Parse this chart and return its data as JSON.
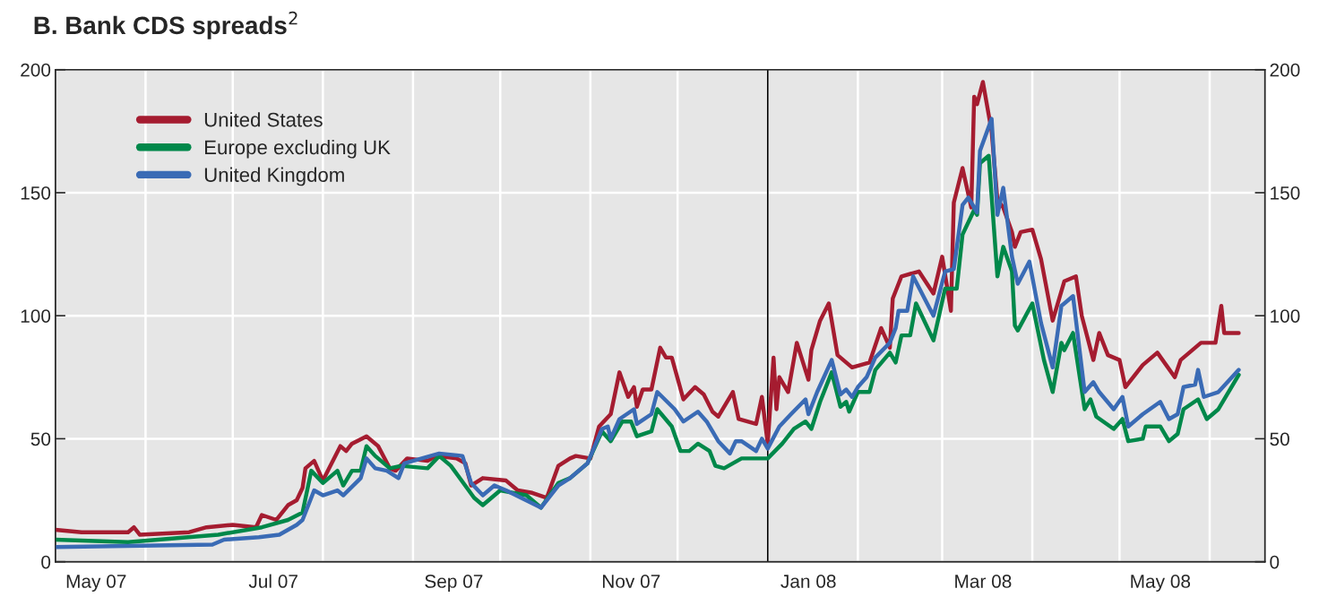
{
  "chart_data": {
    "type": "line",
    "title": "B. Bank CDS spreads$^{2}$",
    "xlim": [
      "2007-05-01",
      "2008-06-20"
    ],
    "xticks": [
      {
        "value": "2007-06-01",
        "label": null
      },
      {
        "value": "2007-07-01",
        "label": null
      },
      {
        "value": "2007-08-01",
        "label": null
      },
      {
        "value": "2007-09-01",
        "label": null
      },
      {
        "value": "2007-10-01",
        "label": null
      },
      {
        "value": "2007-11-01",
        "label": null
      },
      {
        "value": "2007-12-01",
        "label": null
      },
      {
        "value": "2008-01-01",
        "label": null
      },
      {
        "value": "2008-02-01",
        "label": null
      },
      {
        "value": "2008-03-01",
        "label": null
      },
      {
        "value": "2008-04-01",
        "label": null
      },
      {
        "value": "2008-05-01",
        "label": null
      },
      {
        "value": "2008-06-01",
        "label": null
      },
      {
        "value": "2007-05-15",
        "label": "May 07"
      },
      {
        "value": "2007-07-15",
        "label": "Jul 07"
      },
      {
        "value": "2007-09-15",
        "label": "Sep 07"
      },
      {
        "value": "2007-11-15",
        "label": "Nov 07"
      },
      {
        "value": "2008-01-15",
        "label": "Jan 08"
      },
      {
        "value": "2008-03-15",
        "label": "Mar 08"
      },
      {
        "value": "2008-05-15",
        "label": "May 08"
      }
    ],
    "ylim": [
      0,
      200
    ],
    "yticks": [
      0,
      50,
      100,
      150,
      200
    ],
    "y2lim": [
      0,
      200
    ],
    "y2ticks": [
      0,
      50,
      100,
      150,
      200
    ],
    "grid": true,
    "legend": "top left",
    "ref_lines": [
      {
        "axis": "x",
        "value": "2008-01-01",
        "color": "#000000"
      }
    ],
    "series": [
      {
        "name": "United States",
        "color": "#a51c30",
        "x": [
          "2007-05-01",
          "2007-05-10",
          "2007-05-26",
          "2007-05-28",
          "2007-05-30",
          "2007-06-16",
          "2007-06-22",
          "2007-07-01",
          "2007-07-09",
          "2007-07-11",
          "2007-07-16",
          "2007-07-20",
          "2007-07-23",
          "2007-07-25",
          "2007-07-26",
          "2007-07-29",
          "2007-08-01",
          "2007-08-07",
          "2007-08-09",
          "2007-08-11",
          "2007-08-16",
          "2007-08-20",
          "2007-08-24",
          "2007-08-26",
          "2007-08-30",
          "2007-09-06",
          "2007-09-09",
          "2007-09-16",
          "2007-09-19",
          "2007-09-21",
          "2007-09-25",
          "2007-10-03",
          "2007-10-07",
          "2007-10-12",
          "2007-10-17",
          "2007-10-21",
          "2007-10-25",
          "2007-10-27",
          "2007-11-01",
          "2007-11-04",
          "2007-11-08",
          "2007-11-11",
          "2007-11-14",
          "2007-11-16",
          "2007-11-17",
          "2007-11-19",
          "2007-11-22",
          "2007-11-25",
          "2007-11-27",
          "2007-11-29",
          "2007-12-03",
          "2007-12-07",
          "2007-12-10",
          "2007-12-13",
          "2007-12-15",
          "2007-12-20",
          "2007-12-22",
          "2007-12-28",
          "2007-12-30",
          "2008-01-01",
          "2008-01-03",
          "2008-01-04",
          "2008-01-05",
          "2008-01-08",
          "2008-01-11",
          "2008-01-15",
          "2008-01-16",
          "2008-01-19",
          "2008-01-22",
          "2008-01-25",
          "2008-01-30",
          "2008-02-05",
          "2008-02-09",
          "2008-02-12",
          "2008-02-13",
          "2008-02-16",
          "2008-02-22",
          "2008-02-27",
          "2008-03-01",
          "2008-03-04",
          "2008-03-05",
          "2008-03-08",
          "2008-03-11",
          "2008-03-12",
          "2008-03-13",
          "2008-03-15",
          "2008-03-18",
          "2008-03-20",
          "2008-03-22",
          "2008-03-25",
          "2008-03-26",
          "2008-03-28",
          "2008-04-01",
          "2008-04-04",
          "2008-04-08",
          "2008-04-12",
          "2008-04-16",
          "2008-04-18",
          "2008-04-22",
          "2008-04-24",
          "2008-04-27",
          "2008-05-01",
          "2008-05-03",
          "2008-05-09",
          "2008-05-14",
          "2008-05-20",
          "2008-05-22",
          "2008-05-29",
          "2008-06-03",
          "2008-06-05",
          "2008-06-06",
          "2008-06-11"
        ],
        "values": [
          13,
          12,
          12,
          14,
          11,
          12,
          14,
          15,
          14,
          19,
          17,
          23,
          25,
          30,
          38,
          41,
          33,
          47,
          45,
          48,
          51,
          47,
          38,
          37,
          42,
          41,
          43,
          42,
          40,
          31,
          34,
          33,
          29,
          28,
          26,
          39,
          42,
          43,
          42,
          55,
          60,
          77,
          67,
          71,
          63,
          70,
          70,
          87,
          83,
          83,
          66,
          71,
          68,
          61,
          59,
          69,
          58,
          56,
          67,
          48,
          83,
          62,
          75,
          69,
          89,
          74,
          86,
          98,
          105,
          84,
          79,
          81,
          95,
          87,
          107,
          116,
          118,
          109,
          124,
          102,
          146,
          160,
          144,
          189,
          186,
          195,
          175,
          147,
          144,
          134,
          128,
          134,
          135,
          123,
          98,
          114,
          116,
          100,
          82,
          93,
          84,
          82,
          71,
          80,
          85,
          75,
          82,
          89,
          89,
          104,
          93,
          93
        ]
      },
      {
        "name": "Europe excluding UK",
        "color": "#00884a",
        "x": [
          "2007-05-01",
          "2007-05-26",
          "2007-06-26",
          "2007-07-11",
          "2007-07-20",
          "2007-07-25",
          "2007-07-28",
          "2007-08-01",
          "2007-08-06",
          "2007-08-08",
          "2007-08-11",
          "2007-08-14",
          "2007-08-16",
          "2007-08-19",
          "2007-08-24",
          "2007-08-28",
          "2007-09-06",
          "2007-09-10",
          "2007-09-14",
          "2007-09-22",
          "2007-09-25",
          "2007-10-01",
          "2007-10-10",
          "2007-10-15",
          "2007-10-21",
          "2007-10-25",
          "2007-10-31",
          "2007-11-05",
          "2007-11-08",
          "2007-11-12",
          "2007-11-15",
          "2007-11-17",
          "2007-11-22",
          "2007-11-24",
          "2007-11-29",
          "2007-12-02",
          "2007-12-05",
          "2007-12-08",
          "2007-12-12",
          "2007-12-14",
          "2007-12-17",
          "2007-12-23",
          "2008-01-01",
          "2008-01-06",
          "2008-01-10",
          "2008-01-14",
          "2008-01-16",
          "2008-01-19",
          "2008-01-23",
          "2008-01-26",
          "2008-01-28",
          "2008-01-29",
          "2008-02-01",
          "2008-02-05",
          "2008-02-07",
          "2008-02-12",
          "2008-02-14",
          "2008-02-16",
          "2008-02-19",
          "2008-02-21",
          "2008-02-27",
          "2008-03-02",
          "2008-03-06",
          "2008-03-08",
          "2008-03-12",
          "2008-03-13",
          "2008-03-14",
          "2008-03-17",
          "2008-03-20",
          "2008-03-22",
          "2008-03-25",
          "2008-03-26",
          "2008-03-27",
          "2008-04-01",
          "2008-04-05",
          "2008-04-08",
          "2008-04-11",
          "2008-04-12",
          "2008-04-15",
          "2008-04-19",
          "2008-04-21",
          "2008-04-23",
          "2008-04-29",
          "2008-05-02",
          "2008-05-04",
          "2008-05-09",
          "2008-05-10",
          "2008-05-15",
          "2008-05-18",
          "2008-05-21",
          "2008-05-23",
          "2008-05-28",
          "2008-05-31",
          "2008-06-04",
          "2008-06-11"
        ],
        "values": [
          9,
          8,
          11,
          14,
          17,
          20,
          37,
          32,
          37,
          31,
          37,
          37,
          47,
          43,
          38,
          39,
          38,
          43,
          39,
          26,
          23,
          29,
          27,
          22,
          32,
          34,
          40,
          53,
          49,
          57,
          57,
          51,
          53,
          62,
          55,
          45,
          45,
          48,
          45,
          39,
          38,
          42,
          42,
          48,
          54,
          57,
          54,
          65,
          77,
          63,
          65,
          61,
          69,
          69,
          78,
          85,
          81,
          92,
          92,
          105,
          90,
          111,
          111,
          133,
          143,
          141,
          162,
          165,
          116,
          128,
          118,
          96,
          94,
          105,
          82,
          69,
          89,
          86,
          93,
          62,
          66,
          59,
          54,
          58,
          49,
          50,
          55,
          55,
          49,
          52,
          62,
          66,
          58,
          62,
          76
        ]
      },
      {
        "name": "United Kingdom",
        "color": "#3a6bb5",
        "x": [
          "2007-05-01",
          "2007-06-24",
          "2007-06-28",
          "2007-07-10",
          "2007-07-17",
          "2007-07-23",
          "2007-07-25",
          "2007-07-29",
          "2007-08-01",
          "2007-08-06",
          "2007-08-08",
          "2007-08-14",
          "2007-08-16",
          "2007-08-19",
          "2007-08-23",
          "2007-08-27",
          "2007-08-29",
          "2007-09-10",
          "2007-09-18",
          "2007-09-21",
          "2007-09-25",
          "2007-09-29",
          "2007-10-03",
          "2007-10-15",
          "2007-10-21",
          "2007-10-25",
          "2007-10-31",
          "2007-11-05",
          "2007-11-07",
          "2007-11-08",
          "2007-11-11",
          "2007-11-16",
          "2007-11-17",
          "2007-11-22",
          "2007-11-24",
          "2007-11-30",
          "2007-12-03",
          "2007-12-08",
          "2007-12-11",
          "2007-12-15",
          "2007-12-19",
          "2007-12-21",
          "2007-12-23",
          "2007-12-28",
          "2007-12-30",
          "2008-01-01",
          "2008-01-05",
          "2008-01-09",
          "2008-01-14",
          "2008-01-15",
          "2008-01-18",
          "2008-01-23",
          "2008-01-26",
          "2008-01-28",
          "2008-01-30",
          "2008-02-01",
          "2008-02-04",
          "2008-02-07",
          "2008-02-12",
          "2008-02-14",
          "2008-02-15",
          "2008-02-18",
          "2008-02-20",
          "2008-02-27",
          "2008-03-02",
          "2008-03-05",
          "2008-03-08",
          "2008-03-10",
          "2008-03-13",
          "2008-03-14",
          "2008-03-18",
          "2008-03-20",
          "2008-03-22",
          "2008-03-25",
          "2008-03-27",
          "2008-03-31",
          "2008-04-04",
          "2008-04-08",
          "2008-04-11",
          "2008-04-15",
          "2008-04-19",
          "2008-04-22",
          "2008-04-24",
          "2008-04-29",
          "2008-05-02",
          "2008-05-04",
          "2008-05-09",
          "2008-05-15",
          "2008-05-18",
          "2008-05-21",
          "2008-05-23",
          "2008-05-27",
          "2008-05-28",
          "2008-05-30",
          "2008-06-04",
          "2008-06-11"
        ],
        "values": [
          6,
          7,
          9,
          10,
          11,
          15,
          17,
          29,
          27,
          29,
          27,
          34,
          42,
          38,
          37,
          34,
          40,
          44,
          43,
          32,
          27,
          31,
          29,
          22,
          31,
          34,
          40,
          54,
          55,
          50,
          58,
          62,
          56,
          60,
          69,
          62,
          57,
          61,
          57,
          49,
          44,
          49,
          49,
          45,
          50,
          46,
          55,
          60,
          66,
          60,
          69,
          82,
          68,
          70,
          67,
          71,
          75,
          83,
          89,
          95,
          102,
          102,
          116,
          100,
          118,
          119,
          145,
          148,
          142,
          167,
          180,
          141,
          152,
          124,
          113,
          122,
          97,
          79,
          104,
          108,
          69,
          73,
          69,
          62,
          67,
          55,
          60,
          65,
          58,
          60,
          71,
          72,
          78,
          67,
          69,
          78
        ]
      }
    ]
  }
}
